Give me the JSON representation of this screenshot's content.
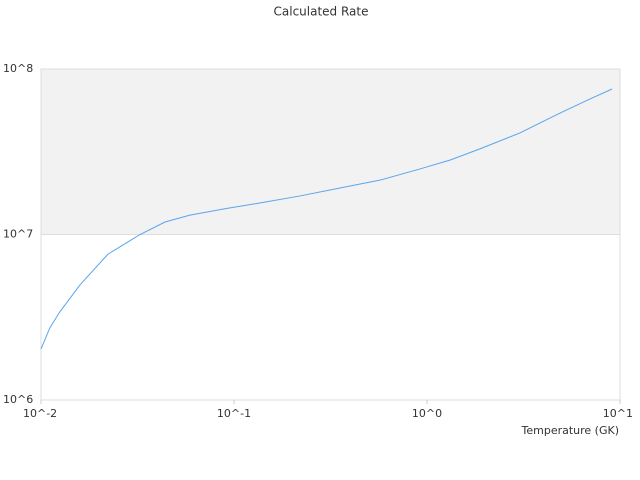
{
  "chart_data": {
    "type": "line",
    "title": "Calculated Rate",
    "x_label": "Temperature (GK)",
    "x": [
      0.01,
      0.0111,
      0.0125,
      0.0159,
      0.0222,
      0.0326,
      0.0439,
      0.0591,
      0.0897,
      0.136,
      0.22,
      0.354,
      0.57,
      0.92,
      1.32,
      1.88,
      3.03,
      4.89,
      7.0,
      9.1
    ],
    "series": [
      {
        "color": "#5aa5ee",
        "values": [
          2030000,
          2720000,
          3400000,
          4950000,
          7600000,
          10000000,
          11900000,
          13100000,
          14300000,
          15500000,
          17100000,
          19100000,
          21300000,
          24900000,
          28200000,
          32900000,
          41100000,
          54200000,
          65900000,
          75700000
        ]
      }
    ],
    "xlim": [
      0.01,
      10
    ],
    "ylim": [
      1000000,
      100000000
    ],
    "xticks": [
      {
        "value": 0.01,
        "label": "10^-2"
      },
      {
        "value": 0.1,
        "label": "10^-1"
      },
      {
        "value": 1,
        "label": "10^0"
      },
      {
        "value": 10,
        "label": "10^1"
      }
    ],
    "yticks": [
      {
        "value": 1000000,
        "label": "10^6"
      },
      {
        "value": 10000000,
        "label": "10^7"
      },
      {
        "value": 100000000,
        "label": "10^8"
      }
    ],
    "xlog": true,
    "ylog": true,
    "grid_band_color": "#f2f2f2"
  }
}
